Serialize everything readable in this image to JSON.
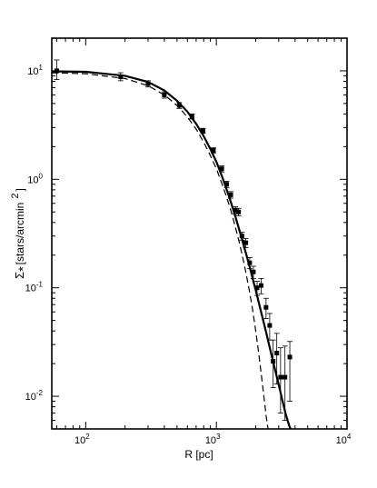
{
  "chart_data": {
    "type": "scatter",
    "title": "",
    "xlabel": "R [pc]",
    "ylabel": {
      "sigma": "Σ",
      "sub": "*",
      "unit": "[stars/arcmin",
      "sup": "2",
      "close": "]"
    },
    "x_scale": "log",
    "y_scale": "log",
    "xlim": [
      55,
      10000
    ],
    "ylim": [
      0.005,
      20
    ],
    "grid": false,
    "legend": "none",
    "x_ticks": [
      {
        "value": 100,
        "base": "10",
        "exp": "2"
      },
      {
        "value": 1000,
        "base": "10",
        "exp": "3"
      },
      {
        "value": 10000,
        "base": "10",
        "exp": "4"
      }
    ],
    "y_ticks": [
      {
        "value": 0.01,
        "base": "10",
        "exp": "-2"
      },
      {
        "value": 0.1,
        "base": "10",
        "exp": "-1"
      },
      {
        "value": 1,
        "base": "10",
        "exp": "0"
      },
      {
        "value": 10,
        "base": "10",
        "exp": "1"
      }
    ],
    "points": [
      {
        "x": 60,
        "y": 10.0,
        "err_low": 8.3,
        "err_high": 12.6
      },
      {
        "x": 185,
        "y": 8.8,
        "err_low": 8.1,
        "err_high": 9.6
      },
      {
        "x": 300,
        "y": 7.6,
        "err_low": 7.1,
        "err_high": 8.1
      },
      {
        "x": 400,
        "y": 6.0,
        "err_low": 5.6,
        "err_high": 6.4
      },
      {
        "x": 520,
        "y": 4.8,
        "err_low": 4.5,
        "err_high": 5.1
      },
      {
        "x": 650,
        "y": 3.8,
        "err_low": 3.6,
        "err_high": 4.0
      },
      {
        "x": 790,
        "y": 2.8,
        "err_low": 2.65,
        "err_high": 2.95
      },
      {
        "x": 950,
        "y": 1.85,
        "err_low": 1.75,
        "err_high": 1.95
      },
      {
        "x": 1100,
        "y": 1.25,
        "err_low": 1.17,
        "err_high": 1.33
      },
      {
        "x": 1200,
        "y": 0.9,
        "err_low": 0.84,
        "err_high": 0.96
      },
      {
        "x": 1290,
        "y": 0.72,
        "err_low": 0.67,
        "err_high": 0.77
      },
      {
        "x": 1400,
        "y": 0.52,
        "err_low": 0.48,
        "err_high": 0.56
      },
      {
        "x": 1480,
        "y": 0.5,
        "err_low": 0.46,
        "err_high": 0.54
      },
      {
        "x": 1570,
        "y": 0.3,
        "err_low": 0.275,
        "err_high": 0.325
      },
      {
        "x": 1680,
        "y": 0.26,
        "err_low": 0.235,
        "err_high": 0.285
      },
      {
        "x": 1800,
        "y": 0.17,
        "err_low": 0.15,
        "err_high": 0.19
      },
      {
        "x": 1920,
        "y": 0.14,
        "err_low": 0.122,
        "err_high": 0.158
      },
      {
        "x": 2050,
        "y": 0.1,
        "err_low": 0.085,
        "err_high": 0.115
      },
      {
        "x": 2200,
        "y": 0.105,
        "err_low": 0.088,
        "err_high": 0.122
      },
      {
        "x": 2400,
        "y": 0.066,
        "err_low": 0.052,
        "err_high": 0.08
      },
      {
        "x": 2560,
        "y": 0.045,
        "err_low": 0.033,
        "err_high": 0.058
      },
      {
        "x": 2720,
        "y": 0.021,
        "err_low": 0.012,
        "err_high": 0.033
      },
      {
        "x": 2900,
        "y": 0.025,
        "err_low": 0.013,
        "err_high": 0.038
      },
      {
        "x": 3100,
        "y": 0.015,
        "err_low": 0.007,
        "err_high": 0.028
      },
      {
        "x": 3350,
        "y": 0.015,
        "err_low": 0.006,
        "err_high": 0.029
      },
      {
        "x": 3650,
        "y": 0.023,
        "err_low": 0.009,
        "err_high": 0.032
      }
    ],
    "solid_curve": {
      "x": [
        55,
        100,
        200,
        300,
        400,
        500,
        600,
        700,
        800,
        900,
        1000,
        1100,
        1200,
        1300,
        1400,
        1500,
        1600,
        1700,
        1800,
        1900,
        2000,
        2200,
        2400,
        2600,
        2800,
        3000,
        3200,
        3400,
        3600,
        3800
      ],
      "y": [
        9.9,
        9.8,
        9.0,
        7.9,
        6.6,
        5.3,
        4.2,
        3.25,
        2.5,
        1.9,
        1.45,
        1.08,
        0.8,
        0.6,
        0.45,
        0.34,
        0.26,
        0.2,
        0.155,
        0.12,
        0.095,
        0.06,
        0.039,
        0.026,
        0.018,
        0.0128,
        0.0092,
        0.0068,
        0.0054,
        0.0046
      ]
    },
    "dashed_curve": {
      "x": [
        55,
        100,
        200,
        300,
        400,
        500,
        600,
        700,
        800,
        900,
        1000,
        1100,
        1200,
        1300,
        1400,
        1500,
        1600,
        1700,
        1800,
        1900,
        2000,
        2100,
        2200,
        2300,
        2400,
        2500
      ],
      "y": [
        9.6,
        9.4,
        8.5,
        7.3,
        6.0,
        4.8,
        3.75,
        2.9,
        2.2,
        1.65,
        1.25,
        0.92,
        0.68,
        0.5,
        0.36,
        0.26,
        0.185,
        0.13,
        0.09,
        0.061,
        0.04,
        0.026,
        0.0165,
        0.0105,
        0.0066,
        0.0048
      ]
    }
  }
}
